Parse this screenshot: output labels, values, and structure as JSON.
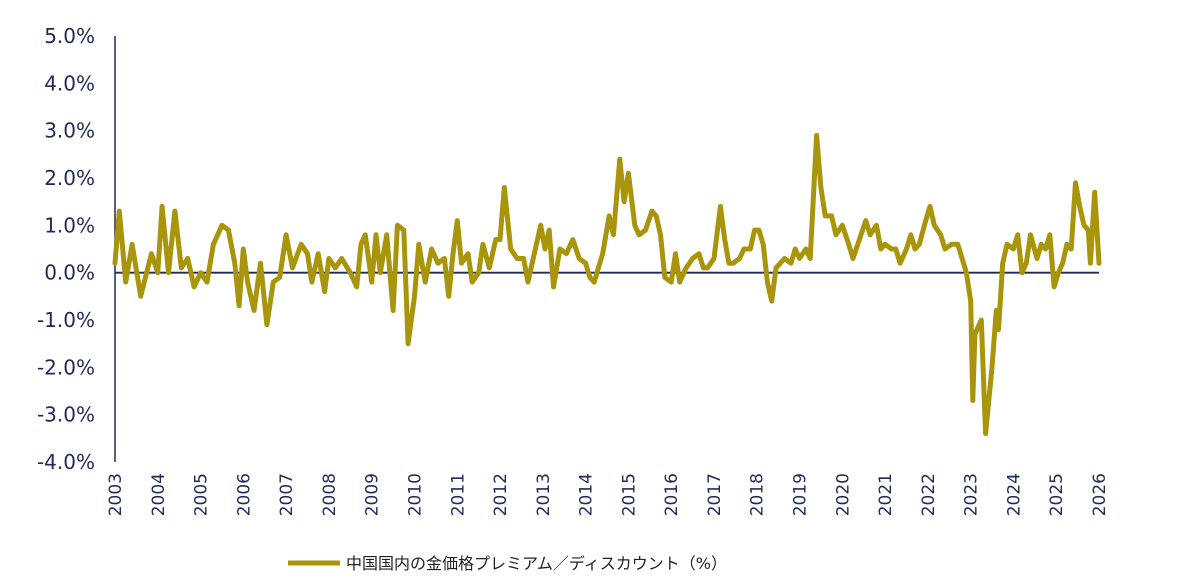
{
  "chart_data": {
    "type": "line",
    "title": "",
    "xlabel": "",
    "ylabel": "",
    "ylim": [
      -4.0,
      5.0
    ],
    "xlim": [
      2003,
      2026
    ],
    "grid": false,
    "legend_placement": "bottom-left",
    "colors": {
      "series": "#a8950c",
      "axis": "#1f2a5a",
      "text": "#1f2a5a"
    },
    "y_ticks": [
      "5.0%",
      "4.0%",
      "3.0%",
      "2.0%",
      "1.0%",
      "0.0%",
      "-1.0%",
      "-2.0%",
      "-3.0%",
      "-4.0%"
    ],
    "y_tick_values": [
      5,
      4,
      3,
      2,
      1,
      0,
      -1,
      -2,
      -3,
      -4
    ],
    "x_ticks": [
      "2003",
      "2004",
      "2005",
      "2006",
      "2007",
      "2008",
      "2009",
      "2010",
      "2011",
      "2012",
      "2013",
      "2014",
      "2015",
      "2016",
      "2017",
      "2018",
      "2019",
      "2020",
      "2021",
      "2022",
      "2023",
      "2024",
      "2025",
      "2026"
    ],
    "series": [
      {
        "name": "中国国内の金価格プレミアム／ディスカウント（%）",
        "points": [
          [
            2003.0,
            0.2
          ],
          [
            2003.1,
            1.3
          ],
          [
            2003.25,
            -0.2
          ],
          [
            2003.4,
            0.6
          ],
          [
            2003.6,
            -0.5
          ],
          [
            2003.85,
            0.4
          ],
          [
            2004.0,
            0.0
          ],
          [
            2004.1,
            1.4
          ],
          [
            2004.25,
            0.0
          ],
          [
            2004.4,
            1.3
          ],
          [
            2004.55,
            0.1
          ],
          [
            2004.7,
            0.3
          ],
          [
            2004.85,
            -0.3
          ],
          [
            2005.0,
            0.0
          ],
          [
            2005.15,
            -0.2
          ],
          [
            2005.3,
            0.6
          ],
          [
            2005.5,
            1.0
          ],
          [
            2005.65,
            0.9
          ],
          [
            2005.8,
            0.2
          ],
          [
            2005.9,
            -0.7
          ],
          [
            2006.0,
            0.5
          ],
          [
            2006.1,
            -0.2
          ],
          [
            2006.25,
            -0.8
          ],
          [
            2006.4,
            0.2
          ],
          [
            2006.55,
            -1.1
          ],
          [
            2006.7,
            -0.2
          ],
          [
            2006.85,
            -0.1
          ],
          [
            2007.0,
            0.8
          ],
          [
            2007.15,
            0.1
          ],
          [
            2007.35,
            0.6
          ],
          [
            2007.5,
            0.4
          ],
          [
            2007.6,
            -0.2
          ],
          [
            2007.75,
            0.4
          ],
          [
            2007.9,
            -0.4
          ],
          [
            2008.0,
            0.3
          ],
          [
            2008.15,
            0.1
          ],
          [
            2008.3,
            0.3
          ],
          [
            2008.5,
            0.0
          ],
          [
            2008.65,
            -0.3
          ],
          [
            2008.75,
            0.6
          ],
          [
            2008.85,
            0.8
          ],
          [
            2009.0,
            -0.2
          ],
          [
            2009.1,
            0.8
          ],
          [
            2009.2,
            0.0
          ],
          [
            2009.35,
            0.8
          ],
          [
            2009.5,
            -0.8
          ],
          [
            2009.6,
            1.0
          ],
          [
            2009.75,
            0.9
          ],
          [
            2009.85,
            -1.5
          ],
          [
            2010.0,
            -0.5
          ],
          [
            2010.1,
            0.6
          ],
          [
            2010.25,
            -0.2
          ],
          [
            2010.4,
            0.5
          ],
          [
            2010.55,
            0.2
          ],
          [
            2010.7,
            0.3
          ],
          [
            2010.8,
            -0.5
          ],
          [
            2010.9,
            0.4
          ],
          [
            2011.0,
            1.1
          ],
          [
            2011.1,
            0.2
          ],
          [
            2011.25,
            0.4
          ],
          [
            2011.35,
            -0.2
          ],
          [
            2011.5,
            0.0
          ],
          [
            2011.6,
            0.6
          ],
          [
            2011.75,
            0.1
          ],
          [
            2011.9,
            0.7
          ],
          [
            2012.0,
            0.7
          ],
          [
            2012.1,
            1.8
          ],
          [
            2012.25,
            0.5
          ],
          [
            2012.4,
            0.3
          ],
          [
            2012.55,
            0.3
          ],
          [
            2012.65,
            -0.2
          ],
          [
            2012.8,
            0.4
          ],
          [
            2012.95,
            1.0
          ],
          [
            2013.05,
            0.5
          ],
          [
            2013.15,
            0.9
          ],
          [
            2013.25,
            -0.3
          ],
          [
            2013.4,
            0.5
          ],
          [
            2013.55,
            0.4
          ],
          [
            2013.7,
            0.7
          ],
          [
            2013.85,
            0.3
          ],
          [
            2014.0,
            0.2
          ],
          [
            2014.1,
            -0.1
          ],
          [
            2014.2,
            -0.2
          ],
          [
            2014.3,
            0.1
          ],
          [
            2014.4,
            0.4
          ],
          [
            2014.55,
            1.2
          ],
          [
            2014.65,
            0.8
          ],
          [
            2014.8,
            2.4
          ],
          [
            2014.9,
            1.5
          ],
          [
            2015.0,
            2.1
          ],
          [
            2015.15,
            1.0
          ],
          [
            2015.25,
            0.8
          ],
          [
            2015.4,
            0.9
          ],
          [
            2015.55,
            1.3
          ],
          [
            2015.65,
            1.2
          ],
          [
            2015.75,
            0.8
          ],
          [
            2015.85,
            -0.1
          ],
          [
            2016.0,
            -0.2
          ],
          [
            2016.1,
            0.4
          ],
          [
            2016.2,
            -0.2
          ],
          [
            2016.35,
            0.1
          ],
          [
            2016.5,
            0.3
          ],
          [
            2016.65,
            0.4
          ],
          [
            2016.75,
            0.1
          ],
          [
            2016.85,
            0.1
          ],
          [
            2017.0,
            0.3
          ],
          [
            2017.15,
            1.4
          ],
          [
            2017.25,
            0.7
          ],
          [
            2017.35,
            0.2
          ],
          [
            2017.45,
            0.2
          ],
          [
            2017.6,
            0.3
          ],
          [
            2017.7,
            0.5
          ],
          [
            2017.85,
            0.5
          ],
          [
            2017.95,
            0.9
          ],
          [
            2018.05,
            0.9
          ],
          [
            2018.15,
            0.6
          ],
          [
            2018.25,
            -0.2
          ],
          [
            2018.35,
            -0.6
          ],
          [
            2018.45,
            0.1
          ],
          [
            2018.55,
            0.2
          ],
          [
            2018.65,
            0.3
          ],
          [
            2018.8,
            0.2
          ],
          [
            2018.9,
            0.5
          ],
          [
            2019.0,
            0.3
          ],
          [
            2019.15,
            0.5
          ],
          [
            2019.25,
            0.3
          ],
          [
            2019.4,
            2.9
          ],
          [
            2019.5,
            1.8
          ],
          [
            2019.6,
            1.2
          ],
          [
            2019.75,
            1.2
          ],
          [
            2019.85,
            0.8
          ],
          [
            2020.0,
            1.0
          ],
          [
            2020.15,
            0.6
          ],
          [
            2020.25,
            0.3
          ],
          [
            2020.4,
            0.7
          ],
          [
            2020.55,
            1.1
          ],
          [
            2020.65,
            0.8
          ],
          [
            2020.8,
            1.0
          ],
          [
            2020.9,
            0.5
          ],
          [
            2021.0,
            0.6
          ],
          [
            2021.15,
            0.5
          ],
          [
            2021.25,
            0.5
          ],
          [
            2021.35,
            0.2
          ],
          [
            2021.5,
            0.5
          ],
          [
            2021.6,
            0.8
          ],
          [
            2021.7,
            0.5
          ],
          [
            2021.8,
            0.6
          ],
          [
            2021.95,
            1.1
          ],
          [
            2022.05,
            1.4
          ],
          [
            2022.15,
            1.0
          ],
          [
            2022.3,
            0.8
          ],
          [
            2022.4,
            0.5
          ],
          [
            2022.55,
            0.6
          ],
          [
            2022.7,
            0.6
          ],
          [
            2022.8,
            0.3
          ],
          [
            2022.9,
            0.0
          ],
          [
            2023.0,
            -0.6
          ],
          [
            2023.05,
            -2.7
          ],
          [
            2023.1,
            -1.3
          ],
          [
            2023.25,
            -1.0
          ],
          [
            2023.35,
            -3.4
          ],
          [
            2023.5,
            -2.0
          ],
          [
            2023.6,
            -0.8
          ],
          [
            2023.65,
            -1.2
          ],
          [
            2023.75,
            0.2
          ],
          [
            2023.85,
            0.6
          ],
          [
            2024.0,
            0.5
          ],
          [
            2024.1,
            0.8
          ],
          [
            2024.2,
            0.0
          ],
          [
            2024.3,
            0.2
          ],
          [
            2024.4,
            0.8
          ],
          [
            2024.55,
            0.3
          ],
          [
            2024.65,
            0.6
          ],
          [
            2024.75,
            0.5
          ],
          [
            2024.85,
            0.8
          ],
          [
            2024.95,
            -0.3
          ],
          [
            2025.05,
            0.0
          ],
          [
            2025.15,
            0.2
          ],
          [
            2025.25,
            0.6
          ],
          [
            2025.35,
            0.5
          ],
          [
            2025.45,
            1.9
          ],
          [
            2025.55,
            1.4
          ],
          [
            2025.65,
            1.0
          ],
          [
            2025.75,
            0.9
          ],
          [
            2025.8,
            0.2
          ],
          [
            2025.9,
            1.7
          ],
          [
            2026.0,
            0.2
          ]
        ]
      }
    ]
  },
  "legend": {
    "label": "中国国内の金価格プレミアム／ディスカウント（%）"
  }
}
